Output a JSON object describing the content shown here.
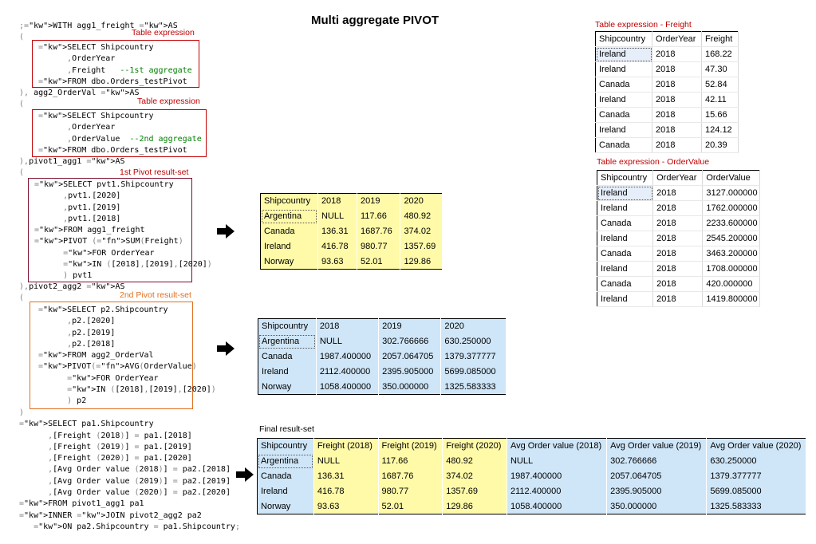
{
  "title": "Multi aggregate PIVOT",
  "labels": {
    "table_expression_1": "Table expression",
    "table_expression_2": "Table expression",
    "pivot1": "1st Pivot result-set",
    "pivot2": "2nd Pivot result-set",
    "final": "Final result-set",
    "te_freight": "Table expression - Freight",
    "te_ordervalue": "Table expression - OrderValue"
  },
  "code": {
    "block1": [
      ";WITH agg1_freight AS",
      "("
    ],
    "box1": [
      "SELECT Shipcountry",
      "      ,OrderYear",
      "      ,Freight   --1st aggregate",
      "FROM dbo.Orders_testPivot"
    ],
    "block2": [
      "), agg2_OrderVal AS",
      "("
    ],
    "box2": [
      "SELECT Shipcountry",
      "      ,OrderYear",
      "      ,OrderValue  --2nd aggregate",
      "FROM dbo.Orders_testPivot"
    ],
    "block3": [
      "),pivot1_agg1 AS",
      "("
    ],
    "box3": [
      "SELECT pvt1.Shipcountry",
      "      ,pvt1.[2020]",
      "      ,pvt1.[2019]",
      "      ,pvt1.[2018]",
      "FROM agg1_freight",
      "PIVOT (SUM(Freight)",
      "      FOR OrderYear",
      "      IN ([2018],[2019],[2020])",
      "      ) pvt1"
    ],
    "block4": [
      "),pivot2_agg2 AS",
      "("
    ],
    "box4": [
      "SELECT p2.Shipcountry",
      "      ,p2.[2020]",
      "      ,p2.[2019]",
      "      ,p2.[2018]",
      "FROM agg2_OrderVal",
      "PIVOT(AVG(OrderValue)",
      "      FOR OrderYear",
      "      IN ([2018],[2019],[2020])",
      "      ) p2"
    ],
    "block5": [
      ")",
      "SELECT pa1.Shipcountry",
      "      ,[Freight (2018)] = pa1.[2018]",
      "      ,[Freight (2019)] = pa1.[2019]",
      "      ,[Freight (2020)] = pa1.[2020]",
      "      ,[Avg Order value (2018)] = pa2.[2018]",
      "      ,[Avg Order value (2019)] = pa2.[2019]",
      "      ,[Avg Order value (2020)] = pa2.[2020]",
      "FROM pivot1_agg1 pa1",
      "INNER JOIN pivot2_agg2 pa2",
      "   ON pa2.Shipcountry = pa1.Shipcountry;"
    ]
  },
  "pivot1_table": {
    "headers": [
      "Shipcountry",
      "2018",
      "2019",
      "2020"
    ],
    "rows": [
      [
        "Argentina",
        "NULL",
        "117.66",
        "480.92"
      ],
      [
        "Canada",
        "136.31",
        "1687.76",
        "374.02"
      ],
      [
        "Ireland",
        "416.78",
        "980.77",
        "1357.69"
      ],
      [
        "Norway",
        "93.63",
        "52.01",
        "129.86"
      ]
    ]
  },
  "pivot2_table": {
    "headers": [
      "Shipcountry",
      "2018",
      "2019",
      "2020"
    ],
    "rows": [
      [
        "Argentina",
        "NULL",
        "302.766666",
        "630.250000"
      ],
      [
        "Canada",
        "1987.400000",
        "2057.064705",
        "1379.377777"
      ],
      [
        "Ireland",
        "2112.400000",
        "2395.905000",
        "5699.085000"
      ],
      [
        "Norway",
        "1058.400000",
        "350.000000",
        "1325.583333"
      ]
    ]
  },
  "freight_table": {
    "headers": [
      "Shipcountry",
      "OrderYear",
      "Freight"
    ],
    "rows": [
      [
        "Ireland",
        "2018",
        "168.22"
      ],
      [
        "Ireland",
        "2018",
        "47.30"
      ],
      [
        "Canada",
        "2018",
        "52.84"
      ],
      [
        "Ireland",
        "2018",
        "42.11"
      ],
      [
        "Canada",
        "2018",
        "15.66"
      ],
      [
        "Ireland",
        "2018",
        "124.12"
      ],
      [
        "Canada",
        "2018",
        "20.39"
      ]
    ]
  },
  "ordervalue_table": {
    "headers": [
      "Shipcountry",
      "OrderYear",
      "OrderValue"
    ],
    "rows": [
      [
        "Ireland",
        "2018",
        "3127.000000"
      ],
      [
        "Ireland",
        "2018",
        "1762.000000"
      ],
      [
        "Canada",
        "2018",
        "2233.600000"
      ],
      [
        "Ireland",
        "2018",
        "2545.200000"
      ],
      [
        "Canada",
        "2018",
        "3463.200000"
      ],
      [
        "Ireland",
        "2018",
        "1708.000000"
      ],
      [
        "Canada",
        "2018",
        "420.000000"
      ],
      [
        "Ireland",
        "2018",
        "1419.800000"
      ]
    ]
  },
  "final_table": {
    "headers": [
      "Shipcountry",
      "Freight (2018)",
      "Freight (2019)",
      "Freight (2020)",
      "Avg Order value (2018)",
      "Avg Order value (2019)",
      "Avg Order value (2020)"
    ],
    "rows": [
      [
        "Argentina",
        "NULL",
        "117.66",
        "480.92",
        "NULL",
        "302.766666",
        "630.250000"
      ],
      [
        "Canada",
        "136.31",
        "1687.76",
        "374.02",
        "1987.400000",
        "2057.064705",
        "1379.377777"
      ],
      [
        "Ireland",
        "416.78",
        "980.77",
        "1357.69",
        "2112.400000",
        "2395.905000",
        "5699.085000"
      ],
      [
        "Norway",
        "93.63",
        "52.01",
        "129.86",
        "1058.400000",
        "350.000000",
        "1325.583333"
      ]
    ]
  },
  "colors": {
    "yellow": "#fffaa8",
    "blue": "#cfe6f8",
    "red": "#c00000",
    "orange": "#e07020"
  }
}
